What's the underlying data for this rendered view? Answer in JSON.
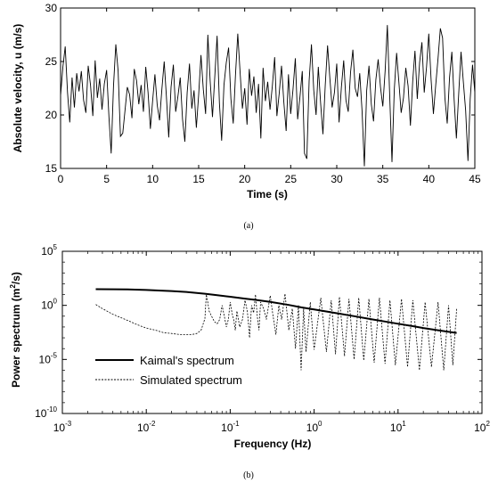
{
  "chart_data": [
    {
      "type": "line",
      "panel_label": "(a)",
      "xlabel": "Time (s)",
      "ylabel": "Absolute velocity, u (m/s)",
      "xlim": [
        0,
        45
      ],
      "ylim": [
        15,
        30
      ],
      "xticks": [
        "0",
        "5",
        "10",
        "15",
        "20",
        "25",
        "30",
        "35",
        "40",
        "45"
      ],
      "yticks": [
        "15",
        "20",
        "25",
        "30"
      ],
      "grid": false,
      "series": [
        {
          "x": [
            0,
            0.25,
            0.5,
            0.75,
            1,
            1.25,
            1.5,
            1.75,
            2,
            2.25,
            2.5,
            2.75,
            3,
            3.25,
            3.5,
            3.75,
            4,
            4.25,
            4.5,
            4.75,
            5,
            5.25,
            5.5,
            5.75,
            6,
            6.25,
            6.5,
            6.75,
            7,
            7.25,
            7.5,
            7.75,
            8,
            8.25,
            8.5,
            8.75,
            9,
            9.25,
            9.5,
            9.75,
            10,
            10.25,
            10.5,
            10.75,
            11,
            11.25,
            11.5,
            11.75,
            12,
            12.25,
            12.5,
            12.75,
            13,
            13.25,
            13.5,
            13.75,
            14,
            14.25,
            14.5,
            14.75,
            15,
            15.25,
            15.5,
            15.75,
            16,
            16.25,
            16.5,
            16.75,
            17,
            17.25,
            17.5,
            17.75,
            18,
            18.25,
            18.5,
            18.75,
            19,
            19.25,
            19.5,
            19.75,
            20,
            20.25,
            20.5,
            20.75,
            21,
            21.25,
            21.5,
            21.75,
            22,
            22.25,
            22.5,
            22.75,
            23,
            23.25,
            23.5,
            23.75,
            24,
            24.25,
            24.5,
            24.75,
            25,
            25.25,
            25.5,
            25.75,
            26,
            26.25,
            26.5,
            26.75,
            27,
            27.25,
            27.5,
            27.75,
            28,
            28.25,
            28.5,
            28.75,
            29,
            29.25,
            29.5,
            29.75,
            30,
            30.25,
            30.5,
            30.75,
            31,
            31.25,
            31.5,
            31.75,
            32,
            32.25,
            32.5,
            32.75,
            33,
            33.25,
            33.5,
            33.75,
            34,
            34.25,
            34.5,
            34.75,
            35,
            35.25,
            35.5,
            35.75,
            36,
            36.25,
            36.5,
            36.75,
            37,
            37.25,
            37.5,
            37.75,
            38,
            38.25,
            38.5,
            38.75,
            39,
            39.25,
            39.5,
            39.75,
            40,
            40.25,
            40.5,
            40.75,
            41,
            41.25,
            41.5,
            41.75,
            42,
            42.25,
            42.5,
            42.75,
            43,
            43.25,
            43.5,
            43.75,
            44,
            44.25,
            44.5,
            44.75,
            45
          ],
          "values": [
            21.8,
            24.5,
            26.4,
            22.1,
            19.3,
            23.5,
            20.7,
            23.9,
            22.2,
            24.1,
            21.4,
            20.2,
            24.6,
            22.8,
            19.9,
            25.1,
            21.6,
            23.4,
            20.5,
            22.9,
            24.2,
            19.8,
            16.4,
            22.7,
            26.6,
            24.1,
            18.0,
            18.3,
            20.4,
            22.6,
            21.9,
            19.7,
            24.3,
            23.2,
            21.0,
            22.8,
            20.3,
            24.5,
            22.1,
            18.7,
            21.3,
            23.8,
            20.9,
            19.5,
            22.4,
            25.0,
            21.7,
            17.9,
            22.6,
            24.7,
            20.3,
            21.8,
            23.5,
            19.6,
            17.5,
            22.1,
            24.8,
            20.6,
            22.3,
            18.8,
            21.9,
            25.6,
            22.4,
            20.1,
            27.5,
            23.2,
            19.8,
            23.6,
            27.4,
            21.1,
            17.6,
            22.8,
            24.9,
            26.3,
            21.5,
            19.2,
            23.7,
            27.6,
            24.0,
            20.6,
            22.5,
            19.1,
            24.3,
            21.8,
            23.6,
            20.2,
            22.9,
            17.8,
            24.4,
            21.3,
            23.1,
            20.5,
            22.7,
            25.4,
            19.9,
            22.0,
            24.6,
            21.2,
            18.5,
            23.8,
            20.1,
            22.4,
            25.3,
            19.6,
            21.7,
            24.1,
            16.4,
            15.9,
            23.2,
            26.6,
            22.3,
            20.0,
            24.5,
            21.1,
            18.2,
            22.8,
            26.5,
            23.4,
            20.7,
            22.1,
            24.8,
            19.3,
            22.6,
            25.1,
            21.4,
            20.3,
            24.0,
            26.1,
            22.5,
            21.7,
            23.9,
            20.4,
            15.2,
            22.3,
            24.6,
            21.0,
            19.4,
            23.3,
            25.2,
            22.6,
            20.8,
            24.1,
            28.4,
            21.9,
            15.6,
            22.4,
            25.8,
            23.0,
            20.2,
            21.6,
            24.4,
            22.7,
            19.0,
            23.2,
            26.0,
            21.5,
            24.9,
            26.8,
            22.1,
            24.5,
            27.6,
            23.3,
            20.1,
            22.8,
            25.3,
            28.1,
            27.2,
            21.6,
            19.2,
            23.5,
            25.9,
            21.4,
            17.8,
            22.0,
            25.9,
            23.1,
            20.4,
            15.7,
            21.5,
            24.7,
            22.1
          ]
        }
      ]
    },
    {
      "type": "line",
      "panel_label": "(b)",
      "xlabel": "Frequency (Hz)",
      "ylabel": "Power spectrum  (m",
      "ylabel_sup": "2",
      "ylabel_end": "/s)",
      "x_scale": "log",
      "y_scale": "log",
      "xlim": [
        0.001,
        100
      ],
      "ylim": [
        1e-10,
        100000
      ],
      "xtick_base": [
        "10",
        "10",
        "10",
        "10",
        "10",
        "10"
      ],
      "xtick_exp": [
        "-3",
        "-2",
        "-1",
        "0",
        "1",
        "2"
      ],
      "ytick_base": [
        "10",
        "10",
        "10",
        "10"
      ],
      "ytick_exp": [
        "-10",
        "-5",
        "0",
        "5"
      ],
      "grid": false,
      "legend_placement": "lower-left",
      "series": [
        {
          "name": "Kaimal's spectrum",
          "style": "solid",
          "x": [
            0.0025,
            0.004,
            0.006,
            0.01,
            0.015,
            0.02,
            0.03,
            0.05,
            0.07,
            0.1,
            0.15,
            0.2,
            0.3,
            0.5,
            0.7,
            1,
            1.5,
            2,
            3,
            5,
            7,
            10,
            15,
            20,
            30,
            50
          ],
          "values": [
            31.6,
            30.9,
            29.5,
            26.3,
            23.4,
            20.9,
            17.4,
            12.0,
            8.7,
            6.3,
            4.2,
            3.2,
            2.1,
            1.1,
            0.66,
            0.42,
            0.25,
            0.17,
            0.1,
            0.05,
            0.032,
            0.02,
            0.012,
            0.008,
            0.005,
            0.0028
          ]
        },
        {
          "name": "Simulated spectrum",
          "style": "dashed",
          "x": [
            0.0025,
            0.003,
            0.004,
            0.006,
            0.008,
            0.01,
            0.013,
            0.016,
            0.02,
            0.025,
            0.03,
            0.035,
            0.04,
            0.045,
            0.05,
            0.052,
            0.054,
            0.056,
            0.06,
            0.065,
            0.07,
            0.075,
            0.08,
            0.085,
            0.09,
            0.095,
            0.1,
            0.105,
            0.11,
            0.115,
            0.12,
            0.13,
            0.14,
            0.15,
            0.16,
            0.165,
            0.17,
            0.18,
            0.19,
            0.2,
            0.21,
            0.22,
            0.23,
            0.25,
            0.27,
            0.3,
            0.32,
            0.35,
            0.38,
            0.41,
            0.45,
            0.5,
            0.55,
            0.6,
            0.65,
            0.7,
            0.75,
            0.8,
            0.9,
            1,
            1.2,
            1.4,
            1.6,
            1.8,
            2,
            2.3,
            2.6,
            3,
            3.4,
            3.9,
            4.5,
            5.2,
            6,
            7,
            8,
            9.3,
            11,
            13,
            15,
            18,
            21,
            25,
            30,
            35,
            40,
            45,
            50
          ],
          "values": [
            1.2,
            0.5,
            0.15,
            0.04,
            0.015,
            0.008,
            0.005,
            0.003,
            0.0025,
            0.002,
            0.002,
            0.002,
            0.0025,
            0.005,
            0.06,
            10,
            2,
            0.3,
            0.1,
            0.03,
            0.02,
            0.05,
            1,
            0.1,
            0.01,
            0.05,
            2,
            0.2,
            0.05,
            0.005,
            0.3,
            0.01,
            0.05,
            3,
            0.3,
            0.02,
            0.001,
            1,
            0.2,
            10,
            0.1,
            0.005,
            2,
            0.5,
            0.05,
            8,
            0.2,
            0.002,
            1,
            0.05,
            12,
            0.005,
            0.5,
            0.0001,
            1,
            1e-06,
            0.5,
            5e-05,
            2,
            8e-05,
            5,
            5e-05,
            3,
            3e-05,
            6,
            2e-05,
            4,
            1e-05,
            5,
            8e-06,
            4,
            5e-06,
            5,
            4e-06,
            3,
            3e-06,
            4,
            2e-06,
            3,
            1e-06,
            2,
            2e-06,
            2,
            1e-06,
            1,
            3e-06,
            0.5
          ]
        }
      ]
    }
  ]
}
